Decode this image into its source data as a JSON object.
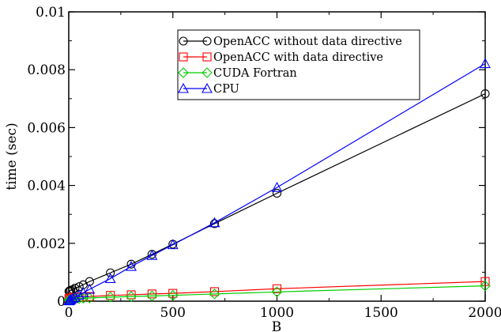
{
  "chart_data": {
    "type": "line",
    "title": "",
    "xlabel": "B",
    "ylabel": "time (sec)",
    "xlim": [
      0,
      2000
    ],
    "ylim": [
      0,
      0.01
    ],
    "xticks": [
      0,
      500,
      1000,
      1500,
      2000
    ],
    "xtick_labels": [
      "0",
      "500",
      "1000",
      "1500",
      "2000"
    ],
    "yticks": [
      0,
      0.002,
      0.004,
      0.006,
      0.008,
      0.01
    ],
    "ytick_labels": [
      "0",
      "0.002",
      "0.004",
      "0.006",
      "0.008",
      "0.01"
    ],
    "grid": false,
    "legend_position": "top-right",
    "series": [
      {
        "name": "OpenACC without data directive",
        "color": "#000000",
        "marker": "circle",
        "x": [
          1,
          5,
          10,
          20,
          30,
          50,
          70,
          100,
          200,
          300,
          400,
          500,
          700,
          1000,
          2000
        ],
        "y": [
          0.00034,
          0.00036,
          0.00038,
          0.0004,
          0.00045,
          0.0005,
          0.00057,
          0.00068,
          0.00098,
          0.00128,
          0.00162,
          0.00197,
          0.00268,
          0.00373,
          0.00717
        ]
      },
      {
        "name": "OpenACC with data directive",
        "color": "#ff0000",
        "marker": "square",
        "x": [
          1,
          5,
          10,
          20,
          30,
          50,
          70,
          100,
          200,
          300,
          400,
          500,
          700,
          1000,
          2000
        ],
        "y": [
          9e-05,
          0.0001,
          0.00011,
          0.00012,
          0.00013,
          0.00014,
          0.00015,
          0.00016,
          0.0002,
          0.00022,
          0.00025,
          0.00027,
          0.00033,
          0.00043,
          0.00068
        ]
      },
      {
        "name": "CUDA Fortran",
        "color": "#00cc00",
        "marker": "diamond",
        "x": [
          1,
          5,
          10,
          20,
          30,
          50,
          70,
          100,
          200,
          300,
          400,
          500,
          700,
          1000,
          2000
        ],
        "y": [
          4e-05,
          5e-05,
          6e-05,
          7e-05,
          8e-05,
          9e-05,
          0.0001,
          0.00011,
          0.00014,
          0.00016,
          0.00018,
          0.0002,
          0.00025,
          0.00032,
          0.00053
        ]
      },
      {
        "name": "CPU",
        "color": "#0000ff",
        "marker": "triangle",
        "x": [
          1,
          5,
          10,
          20,
          30,
          50,
          70,
          100,
          200,
          300,
          400,
          500,
          700,
          1000,
          2000
        ],
        "y": [
          1e-05,
          3e-05,
          5e-05,
          9e-05,
          0.00013,
          0.00021,
          0.00029,
          0.00041,
          0.00078,
          0.0012,
          0.00158,
          0.00195,
          0.00271,
          0.00393,
          0.00821
        ]
      }
    ]
  }
}
